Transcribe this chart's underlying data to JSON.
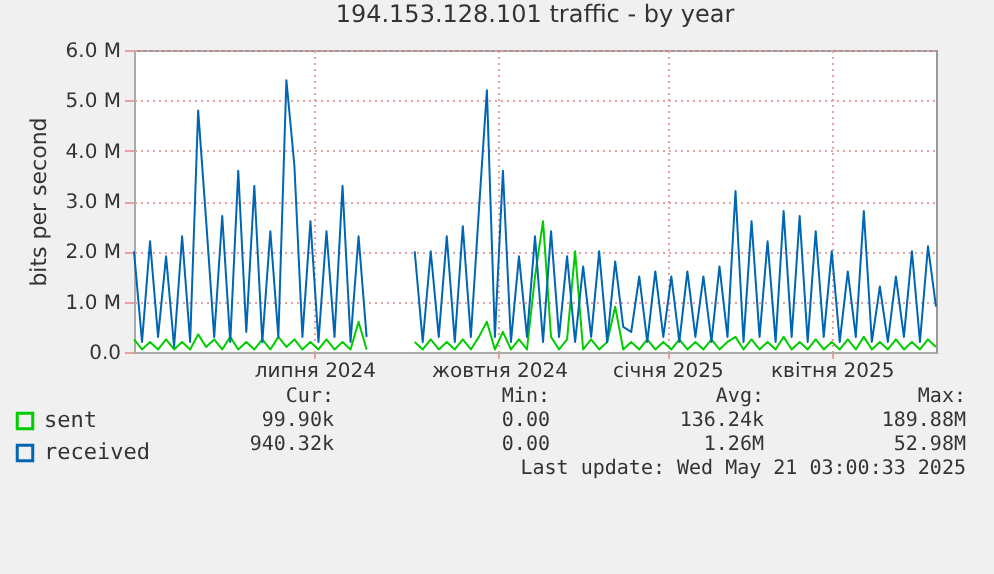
{
  "chart_data": {
    "type": "line",
    "title": "194.153.128.101 traffic - by year",
    "ylabel": "bits per second",
    "x": [
      "2024-04-16",
      "2024-04-20",
      "2024-04-24",
      "2024-04-28",
      "2024-05-02",
      "2024-05-06",
      "2024-05-10",
      "2024-05-14",
      "2024-05-18",
      "2024-05-22",
      "2024-05-26",
      "2024-05-30",
      "2024-06-03",
      "2024-06-07",
      "2024-06-11",
      "2024-06-15",
      "2024-06-19",
      "2024-06-23",
      "2024-06-27",
      "2024-07-01",
      "2024-07-05",
      "2024-07-09",
      "2024-07-13",
      "2024-07-17",
      "2024-07-21",
      "2024-07-25",
      "2024-07-29",
      "2024-08-02",
      "2024-08-06",
      "2024-08-10",
      "2024-08-14",
      "2024-08-18",
      "2024-08-22",
      "2024-08-26",
      "2024-08-30",
      "2024-09-03",
      "2024-09-07",
      "2024-09-11",
      "2024-09-15",
      "2024-09-19",
      "2024-09-23",
      "2024-09-27",
      "2024-10-01",
      "2024-10-05",
      "2024-10-09",
      "2024-10-13",
      "2024-10-17",
      "2024-10-21",
      "2024-10-25",
      "2024-10-29",
      "2024-11-02",
      "2024-11-06",
      "2024-11-10",
      "2024-11-14",
      "2024-11-18",
      "2024-11-22",
      "2024-11-26",
      "2024-11-30",
      "2024-12-04",
      "2024-12-08",
      "2024-12-12",
      "2024-12-16",
      "2024-12-20",
      "2024-12-24",
      "2024-12-28",
      "2025-01-01",
      "2025-01-05",
      "2025-01-09",
      "2025-01-13",
      "2025-01-17",
      "2025-01-21",
      "2025-01-25",
      "2025-01-29",
      "2025-02-02",
      "2025-02-06",
      "2025-02-10",
      "2025-02-14",
      "2025-02-18",
      "2025-02-22",
      "2025-02-26",
      "2025-03-02",
      "2025-03-06",
      "2025-03-10",
      "2025-03-14",
      "2025-03-18",
      "2025-03-22",
      "2025-03-26",
      "2025-03-30",
      "2025-04-03",
      "2025-04-07",
      "2025-04-11",
      "2025-04-15",
      "2025-04-19",
      "2025-04-23",
      "2025-04-27",
      "2025-05-01",
      "2025-05-05",
      "2025-05-09",
      "2025-05-13",
      "2025-05-17",
      "2025-05-21"
    ],
    "series": [
      {
        "name": "sent",
        "color": "#00cc00",
        "values": [
          0.25,
          0.05,
          0.2,
          0.05,
          0.25,
          0.05,
          0.2,
          0.05,
          0.35,
          0.1,
          0.25,
          0.05,
          0.3,
          0.05,
          0.2,
          0.05,
          0.25,
          0.05,
          0.3,
          0.1,
          0.25,
          0.05,
          0.2,
          0.05,
          0.25,
          0.05,
          0.2,
          0.05,
          0.6,
          0.05,
          null,
          null,
          null,
          null,
          null,
          0.2,
          0.05,
          0.25,
          0.05,
          0.2,
          0.05,
          0.25,
          0.05,
          0.3,
          0.6,
          0.05,
          0.4,
          0.05,
          0.25,
          0.05,
          1.5,
          2.6,
          0.3,
          0.05,
          0.25,
          2.0,
          0.05,
          0.25,
          0.05,
          0.2,
          0.9,
          0.05,
          0.2,
          0.05,
          0.25,
          0.05,
          0.2,
          0.05,
          0.25,
          0.05,
          0.2,
          0.05,
          0.25,
          0.05,
          0.2,
          0.3,
          0.05,
          0.25,
          0.05,
          0.2,
          0.05,
          0.3,
          0.05,
          0.2,
          0.05,
          0.25,
          0.05,
          0.2,
          0.05,
          0.25,
          0.05,
          0.3,
          0.05,
          0.2,
          0.05,
          0.25,
          0.05,
          0.2,
          0.05,
          0.25,
          0.1
        ]
      },
      {
        "name": "received",
        "color": "#0066b3",
        "values": [
          2.0,
          0.2,
          2.2,
          0.3,
          1.9,
          0.1,
          2.3,
          0.2,
          4.8,
          2.6,
          0.3,
          2.7,
          0.2,
          3.6,
          0.4,
          3.3,
          0.2,
          2.4,
          0.3,
          5.4,
          3.7,
          0.3,
          2.6,
          0.2,
          2.4,
          0.3,
          3.3,
          0.2,
          2.3,
          0.3,
          null,
          null,
          null,
          null,
          null,
          2.0,
          0.2,
          2.0,
          0.3,
          2.3,
          0.2,
          2.5,
          0.3,
          2.8,
          5.2,
          0.3,
          3.6,
          0.2,
          1.9,
          0.3,
          2.3,
          0.2,
          2.4,
          0.3,
          1.9,
          0.2,
          1.7,
          0.3,
          2.0,
          0.2,
          1.8,
          0.5,
          0.4,
          1.5,
          0.2,
          1.6,
          0.3,
          1.5,
          0.2,
          1.6,
          0.3,
          1.5,
          0.2,
          1.7,
          0.3,
          3.2,
          0.2,
          2.6,
          0.3,
          2.2,
          0.2,
          2.8,
          0.3,
          2.7,
          0.2,
          2.4,
          0.3,
          2.0,
          0.2,
          1.6,
          0.3,
          2.8,
          0.2,
          1.3,
          0.2,
          1.5,
          0.3,
          2.0,
          0.2,
          2.1,
          0.9
        ]
      }
    ],
    "xlim": [
      "2024-04-16",
      "2025-05-21"
    ],
    "xticks": [
      {
        "value": "2024-07-15",
        "label": "липня 2024"
      },
      {
        "value": "2024-10-15",
        "label": "жовтня 2024"
      },
      {
        "value": "2025-01-07",
        "label": "січня 2025"
      },
      {
        "value": "2025-03-30",
        "label": "квітня 2025"
      }
    ],
    "ylim": [
      0,
      6
    ],
    "yticks": [
      {
        "value": 0,
        "label": "0.0"
      },
      {
        "value": 1,
        "label": "1.0 M"
      },
      {
        "value": 2,
        "label": "2.0 M"
      },
      {
        "value": 3,
        "label": "3.0 M"
      },
      {
        "value": 4,
        "label": "4.0 M"
      },
      {
        "value": 5,
        "label": "5.0 M"
      },
      {
        "value": 6,
        "label": "6.0 M"
      }
    ],
    "grid": true,
    "legend": "bottom left",
    "annotations": [
      "Cur:",
      "Min:",
      "Avg:",
      "Max:",
      "99.90k",
      "0.00",
      "136.24k",
      "189.88M",
      "940.32k",
      "0.00",
      "1.26M",
      "52.98M",
      "Last update: Wed May 21 03:00:33 2025"
    ]
  }
}
